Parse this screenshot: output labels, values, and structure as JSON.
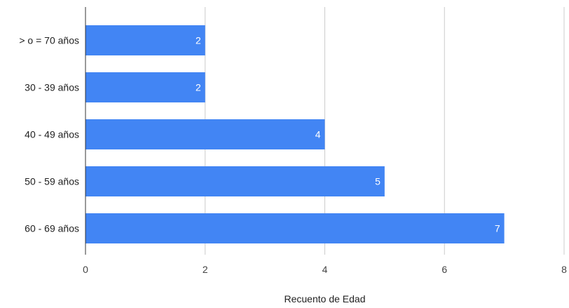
{
  "chart_data": {
    "type": "bar",
    "orientation": "horizontal",
    "categories": [
      "> o = 70 años",
      "30 - 39 años",
      "40 - 49 años",
      "50 - 59 años",
      "60 - 69 años"
    ],
    "values": [
      2,
      2,
      4,
      5,
      7
    ],
    "xlabel": "Recuento de Edad",
    "ylabel": "",
    "xlim": [
      0,
      8
    ],
    "xticks": [
      0,
      2,
      4,
      6,
      8
    ],
    "grid": true,
    "data_labels": true,
    "legend": "none",
    "bar_color": "#4285f4",
    "grid_color": "#cccccc"
  }
}
